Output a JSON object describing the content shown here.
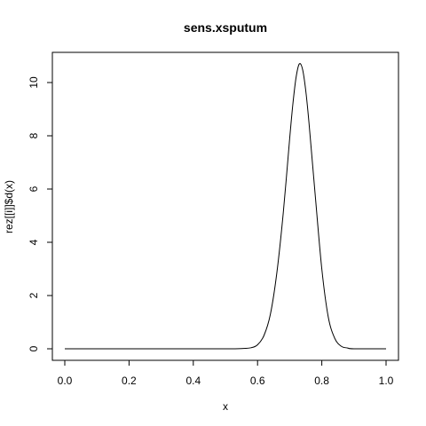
{
  "chart_data": {
    "type": "line",
    "title": "sens.xsputum",
    "xlabel": "x",
    "ylabel": "rez[[i]]$d(x)",
    "xlim": [
      0,
      1
    ],
    "ylim": [
      0,
      10.7
    ],
    "x_ticks": [
      "0.0",
      "0.2",
      "0.4",
      "0.6",
      "0.8",
      "1.0"
    ],
    "y_ticks": [
      "0",
      "2",
      "4",
      "6",
      "8",
      "10"
    ],
    "grid": false,
    "series": [
      {
        "x": [
          0.0,
          0.1,
          0.2,
          0.3,
          0.4,
          0.5,
          0.55,
          0.58,
          0.6,
          0.62,
          0.64,
          0.66,
          0.68,
          0.7,
          0.71,
          0.72,
          0.73,
          0.74,
          0.75,
          0.76,
          0.78,
          0.8,
          0.82,
          0.84,
          0.86,
          0.88,
          0.9,
          1.0
        ],
        "y": [
          0,
          0,
          0,
          0,
          0,
          0,
          0.01,
          0.04,
          0.15,
          0.5,
          1.3,
          2.85,
          5.1,
          7.9,
          9.2,
          10.2,
          10.7,
          10.5,
          9.7,
          8.5,
          5.7,
          3.0,
          1.2,
          0.4,
          0.1,
          0.03,
          0,
          0
        ],
        "color": "#000000"
      }
    ]
  }
}
